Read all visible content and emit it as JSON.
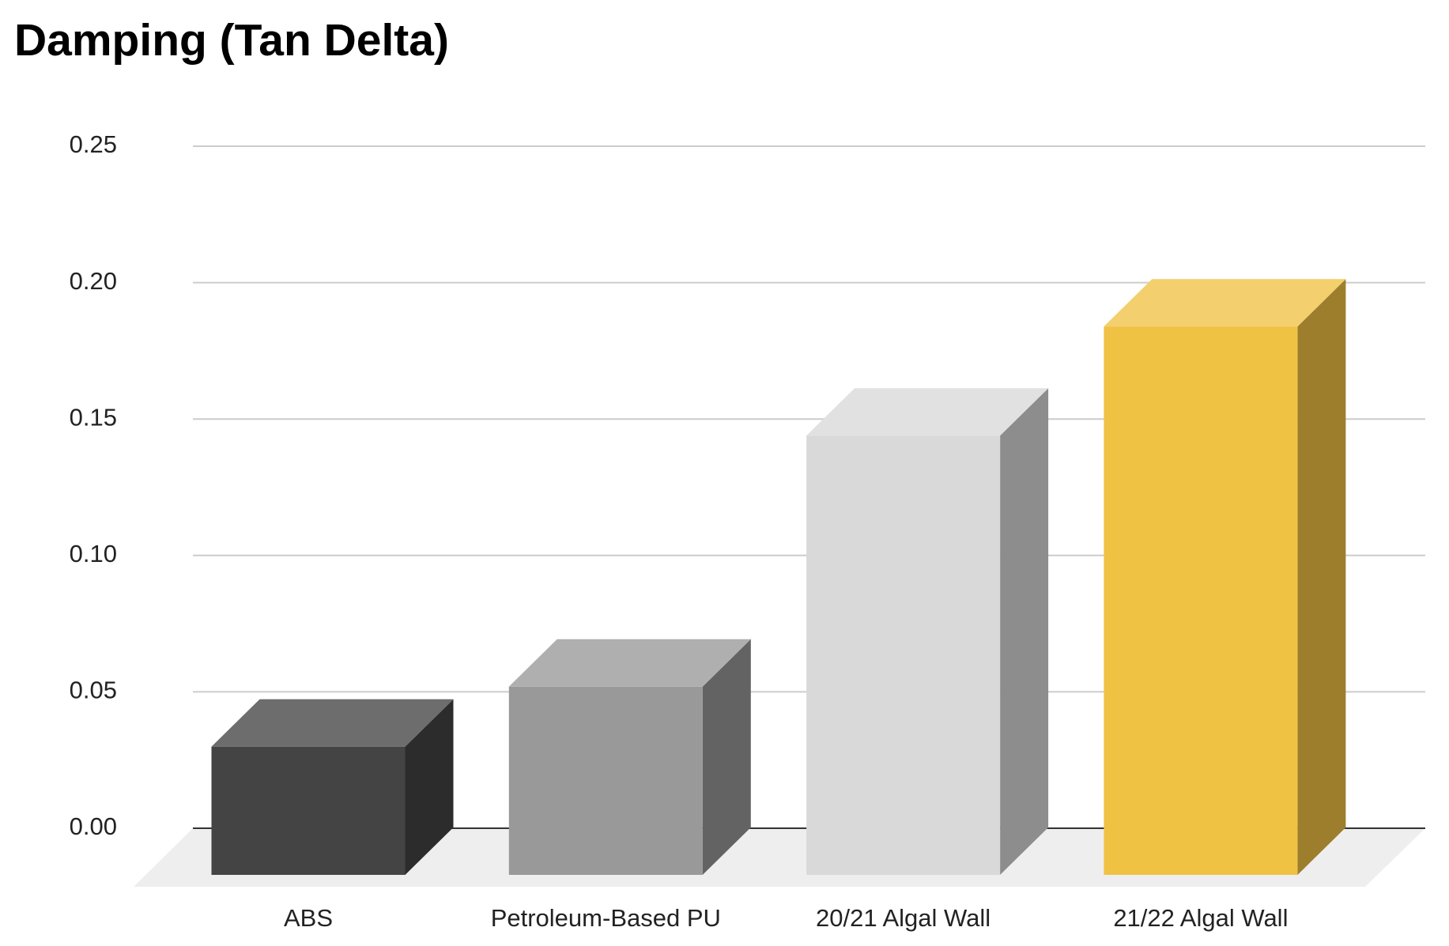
{
  "chart_data": {
    "type": "bar3d",
    "title": "Damping (Tan Delta)",
    "categories": [
      "ABS",
      "Petroleum-Based PU",
      "20/21 Algal Wall",
      "21/22 Algal Wall"
    ],
    "values": [
      0.047,
      0.069,
      0.161,
      0.201
    ],
    "colors": [
      "#444444",
      "#999999",
      "#d9d9d9",
      "#f0c244"
    ],
    "ylim": [
      0,
      0.25
    ],
    "yticks": [
      {
        "value": 0,
        "label": "0.00"
      },
      0.05,
      {
        "value": 0.1,
        "label": "0.10"
      },
      0.15,
      {
        "value": 0.2,
        "label": "0.20"
      },
      0.25
    ],
    "grid": true
  }
}
